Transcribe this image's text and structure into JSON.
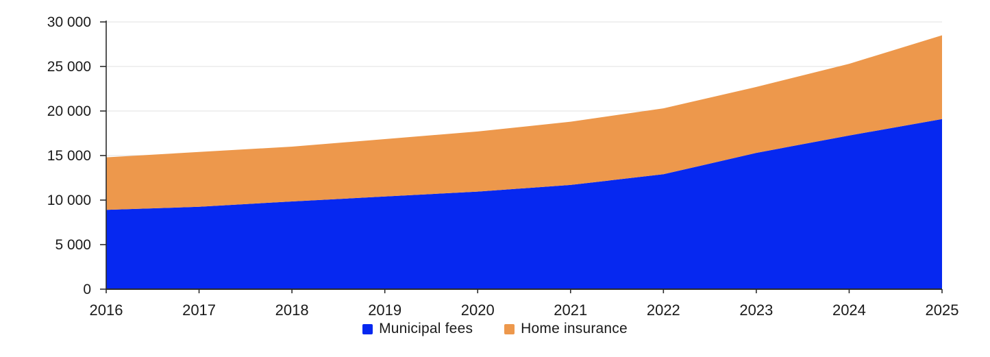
{
  "chart_data": {
    "type": "area",
    "stacked": true,
    "title": "",
    "xlabel": "",
    "ylabel": "",
    "x": [
      "2016",
      "2017",
      "2018",
      "2019",
      "2020",
      "2021",
      "2022",
      "2023",
      "2024",
      "2025"
    ],
    "series": [
      {
        "name": "Municipal fees",
        "color": "#0628f0",
        "values": [
          8900,
          9250,
          9850,
          10400,
          10950,
          11700,
          12900,
          15300,
          17250,
          19100
        ]
      },
      {
        "name": "Home insurance",
        "color": "#ed984c",
        "values": [
          5900,
          6150,
          6150,
          6450,
          6750,
          7100,
          7400,
          7400,
          8050,
          9400
        ]
      }
    ],
    "stacked_totals": [
      14800,
      15400,
      16000,
      16850,
      17700,
      18800,
      20300,
      22700,
      25300,
      28500
    ],
    "ylim": [
      0,
      30000
    ],
    "ytick_interval": 5000,
    "ytick_labels": [
      "0",
      "5 000",
      "10 000",
      "15 000",
      "20 000",
      "25 000",
      "30 000"
    ],
    "grid": "horizontal-only",
    "legend_position": "bottom-center"
  },
  "legend": {
    "items": [
      {
        "label": "Municipal fees",
        "color": "#0628f0"
      },
      {
        "label": "Home insurance",
        "color": "#ed984c"
      }
    ]
  },
  "colors": {
    "municipal_fees": "#0628f0",
    "home_insurance": "#ed984c",
    "grid_line": "#e7e7e7",
    "axis_line": "#2b2b2b",
    "text": "#1a1a1a",
    "background": "#ffffff"
  }
}
